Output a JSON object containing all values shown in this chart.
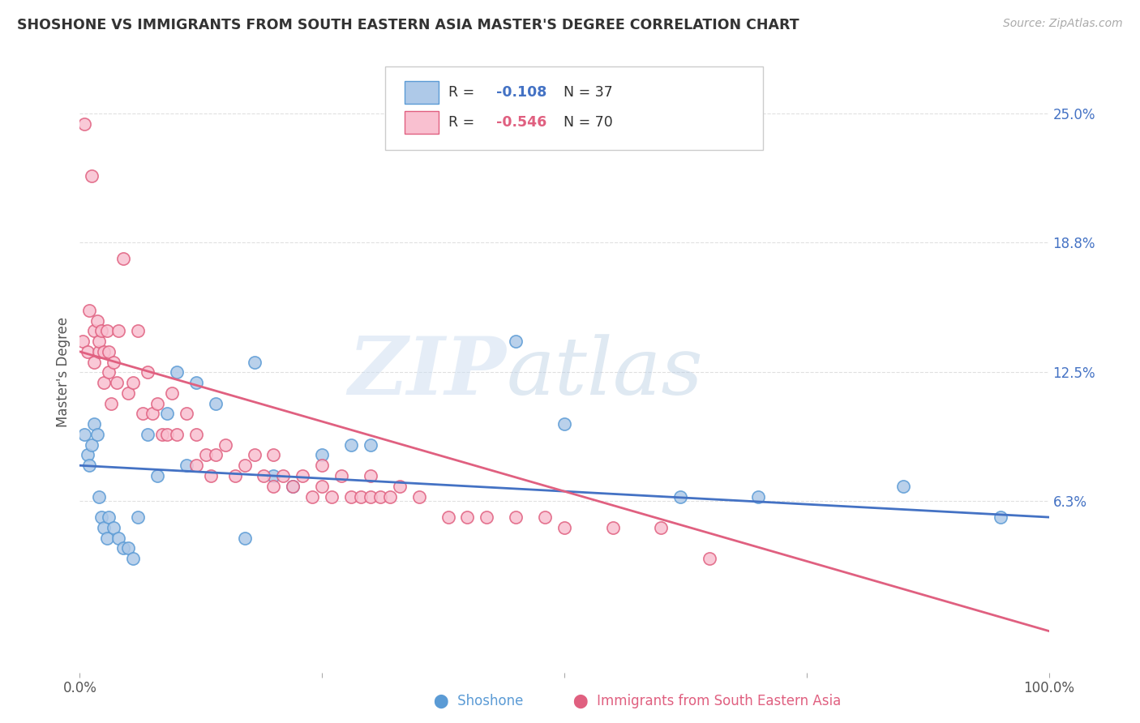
{
  "title": "SHOSHONE VS IMMIGRANTS FROM SOUTH EASTERN ASIA MASTER'S DEGREE CORRELATION CHART",
  "source": "Source: ZipAtlas.com",
  "ylabel": "Master's Degree",
  "xlim": [
    0,
    100
  ],
  "ylim": [
    -2,
    27
  ],
  "yticks": [
    6.3,
    12.5,
    18.8,
    25.0
  ],
  "ytick_labels": [
    "6.3%",
    "12.5%",
    "18.8%",
    "25.0%"
  ],
  "xticks": [
    0,
    25,
    50,
    75,
    100
  ],
  "xtick_labels": [
    "0.0%",
    "",
    "",
    "",
    "100.0%"
  ],
  "blue_label": "Shoshone",
  "pink_label": "Immigrants from South Eastern Asia",
  "blue_R": -0.108,
  "blue_N": 37,
  "pink_R": -0.546,
  "pink_N": 70,
  "blue_color": "#aec9e8",
  "pink_color": "#f9c0d0",
  "blue_edge_color": "#5b9bd5",
  "pink_edge_color": "#e06080",
  "blue_line_color": "#4472c4",
  "pink_line_color": "#e06080",
  "watermark_zip": "ZIP",
  "watermark_atlas": "atlas",
  "background_color": "#ffffff",
  "grid_color": "#e0e0e0",
  "blue_x": [
    0.5,
    0.8,
    1.0,
    1.2,
    1.5,
    1.8,
    2.0,
    2.2,
    2.5,
    2.8,
    3.0,
    3.5,
    4.0,
    4.5,
    5.0,
    5.5,
    6.0,
    7.0,
    8.0,
    9.0,
    10.0,
    11.0,
    12.0,
    14.0,
    17.0,
    18.0,
    20.0,
    22.0,
    25.0,
    28.0,
    30.0,
    45.0,
    50.0,
    62.0,
    70.0,
    85.0,
    95.0
  ],
  "blue_y": [
    9.5,
    8.5,
    8.0,
    9.0,
    10.0,
    9.5,
    6.5,
    5.5,
    5.0,
    4.5,
    5.5,
    5.0,
    4.5,
    4.0,
    4.0,
    3.5,
    5.5,
    9.5,
    7.5,
    10.5,
    12.5,
    8.0,
    12.0,
    11.0,
    4.5,
    13.0,
    7.5,
    7.0,
    8.5,
    9.0,
    9.0,
    14.0,
    10.0,
    6.5,
    6.5,
    7.0,
    5.5
  ],
  "pink_x": [
    0.3,
    0.5,
    0.8,
    1.0,
    1.2,
    1.5,
    1.5,
    1.8,
    2.0,
    2.0,
    2.2,
    2.5,
    2.5,
    2.8,
    3.0,
    3.0,
    3.2,
    3.5,
    3.8,
    4.0,
    4.5,
    5.0,
    5.5,
    6.0,
    6.5,
    7.0,
    7.5,
    8.0,
    8.5,
    9.0,
    9.5,
    10.0,
    11.0,
    12.0,
    12.0,
    13.0,
    13.5,
    14.0,
    15.0,
    16.0,
    17.0,
    18.0,
    19.0,
    20.0,
    20.0,
    21.0,
    22.0,
    23.0,
    24.0,
    25.0,
    25.0,
    26.0,
    27.0,
    28.0,
    29.0,
    30.0,
    30.0,
    31.0,
    32.0,
    33.0,
    35.0,
    38.0,
    40.0,
    42.0,
    45.0,
    48.0,
    50.0,
    55.0,
    60.0,
    65.0
  ],
  "pink_y": [
    14.0,
    24.5,
    13.5,
    15.5,
    22.0,
    14.5,
    13.0,
    15.0,
    13.5,
    14.0,
    14.5,
    13.5,
    12.0,
    14.5,
    12.5,
    13.5,
    11.0,
    13.0,
    12.0,
    14.5,
    18.0,
    11.5,
    12.0,
    14.5,
    10.5,
    12.5,
    10.5,
    11.0,
    9.5,
    9.5,
    11.5,
    9.5,
    10.5,
    8.0,
    9.5,
    8.5,
    7.5,
    8.5,
    9.0,
    7.5,
    8.0,
    8.5,
    7.5,
    7.0,
    8.5,
    7.5,
    7.0,
    7.5,
    6.5,
    7.0,
    8.0,
    6.5,
    7.5,
    6.5,
    6.5,
    6.5,
    7.5,
    6.5,
    6.5,
    7.0,
    6.5,
    5.5,
    5.5,
    5.5,
    5.5,
    5.5,
    5.0,
    5.0,
    5.0,
    3.5
  ],
  "blue_trend_start": 8.0,
  "blue_trend_end": 5.5,
  "pink_trend_start": 13.5,
  "pink_trend_end": 0.0
}
